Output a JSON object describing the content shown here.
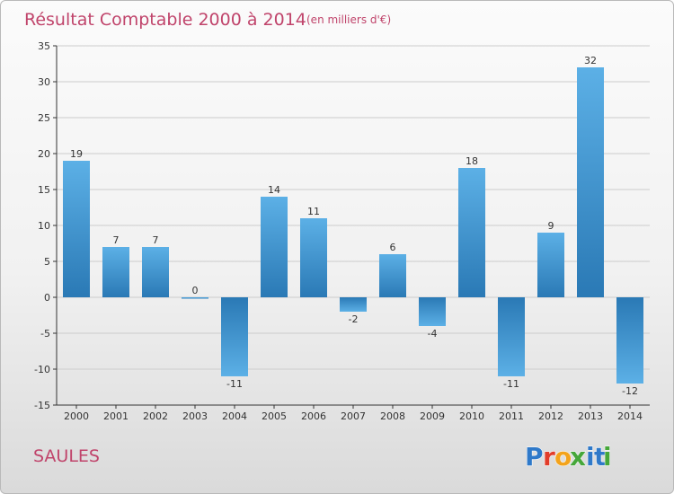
{
  "header": {
    "title": "Résultat Comptable 2000 à 2014",
    "subtitle": "(en milliers d'€)"
  },
  "commune": "SAULES",
  "logo": {
    "letters": [
      "P",
      "r",
      "o",
      "x",
      "i",
      "t",
      "i"
    ],
    "colors": [
      "#2f79c9",
      "#e23d2a",
      "#f3a31c",
      "#46a73a",
      "#2f79c9",
      "#2f79c9",
      "#46a73a"
    ]
  },
  "colors": {
    "bar_dark": "#2a79b5",
    "bar_light": "#5cb0e6",
    "grid": "#cccccc",
    "axis": "#333333"
  },
  "chart_data": {
    "type": "bar",
    "categories": [
      "2000",
      "2001",
      "2002",
      "2003",
      "2004",
      "2005",
      "2006",
      "2007",
      "2008",
      "2009",
      "2010",
      "2011",
      "2012",
      "2013",
      "2014"
    ],
    "values": [
      19,
      7,
      7,
      0,
      -11,
      14,
      11,
      -2,
      6,
      -4,
      18,
      -11,
      9,
      32,
      -12
    ],
    "value_labels": [
      "19",
      "7",
      "7",
      "0",
      "-11",
      "14",
      "11",
      "-2",
      "6",
      "-4",
      "18",
      "-11",
      "9",
      "32",
      "-12"
    ],
    "yticks": [
      35,
      30,
      25,
      20,
      15,
      10,
      5,
      0,
      -5,
      -10,
      -15
    ],
    "ylim": [
      -15,
      35
    ],
    "grid": true,
    "grid_axis": "y",
    "legend": "none"
  }
}
